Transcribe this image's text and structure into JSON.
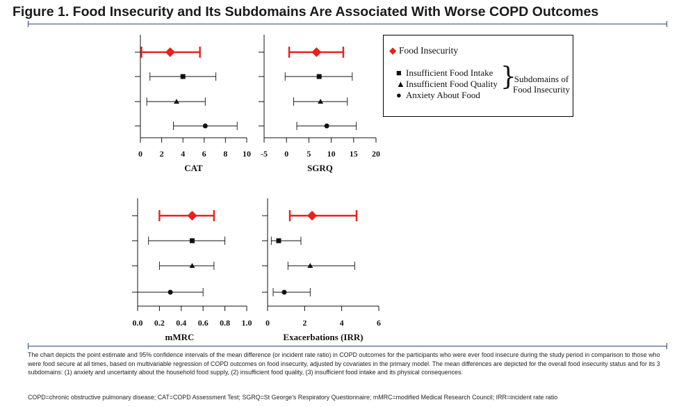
{
  "title": "Figure 1. Food Insecurity and Its Subdomains Are Associated With Worse COPD Outcomes",
  "legend": {
    "food_insecurity": "Food Insecurity",
    "subdomains": [
      "Insufficient Food Intake",
      "Insufficient Food Quality",
      "Anxiety About Food"
    ],
    "subdomain_group_line1": "Subdomains of",
    "subdomain_group_line2": "Food Insecurity",
    "colors": {
      "food_insecurity": "#e8211c",
      "subdomains": "#111111"
    },
    "markers": {
      "food_insecurity": "diamond",
      "subdomains": [
        "square",
        "triangle",
        "circle"
      ]
    }
  },
  "caption": "The chart depicts the point estimate and 95% confidence intervals of the mean difference (or incident rate ratio) in COPD outcomes for the participants who were ever food insecure during the study period in comparison to those who were food secure at all times, based on multivariable regression of COPD outcomes on food insecurity, adjusted by covariates in the primary model. The mean differences are depicted for the overall food insecurity status and for its 3 subdomains: (1) anxiety and uncertainty about the household food supply, (2) insufficient food quality, (3) insufficient food intake and its physical consequences.",
  "abbreviations": "COPD=chronic obstructive pulmonary disease; CAT=COPD Assessment Test; SGRQ=St George's Respiratory Questionnaire; mMRC=modified Medical Research Council; IRR=incident rate ratio",
  "chart_data": [
    {
      "type": "forest",
      "xlabel": "CAT",
      "xlim": [
        0,
        10
      ],
      "ticks": [
        "0",
        "2",
        "4",
        "6",
        "8",
        "10"
      ],
      "rows": [
        {
          "series": "Food Insecurity",
          "estimate": 2.8,
          "ci": [
            0.1,
            5.6
          ]
        },
        {
          "series": "Insufficient Food Intake",
          "estimate": 4.0,
          "ci": [
            0.9,
            7.1
          ]
        },
        {
          "series": "Insufficient Food Quality",
          "estimate": 3.4,
          "ci": [
            0.6,
            6.1
          ]
        },
        {
          "series": "Anxiety About Food",
          "estimate": 6.1,
          "ci": [
            3.1,
            9.1
          ]
        }
      ]
    },
    {
      "type": "forest",
      "xlabel": "SGRQ",
      "xlim": [
        -5,
        20
      ],
      "ticks": [
        "-5",
        "0",
        "5",
        "10",
        "15",
        "20"
      ],
      "rows": [
        {
          "series": "Food Insecurity",
          "estimate": 6.7,
          "ci": [
            0.6,
            12.7
          ]
        },
        {
          "series": "Insufficient Food Intake",
          "estimate": 7.3,
          "ci": [
            -0.3,
            14.7
          ]
        },
        {
          "series": "Insufficient Food Quality",
          "estimate": 7.6,
          "ci": [
            1.6,
            13.6
          ]
        },
        {
          "series": "Anxiety About Food",
          "estimate": 9.0,
          "ci": [
            2.3,
            15.6
          ]
        }
      ]
    },
    {
      "type": "forest",
      "xlabel": "mMRC",
      "xlim": [
        0,
        1.0
      ],
      "ticks": [
        "0.0",
        "0.2",
        "0.4",
        "0.6",
        "0.8",
        "1.0"
      ],
      "rows": [
        {
          "series": "Food Insecurity",
          "estimate": 0.5,
          "ci": [
            0.2,
            0.7
          ]
        },
        {
          "series": "Insufficient Food Intake",
          "estimate": 0.5,
          "ci": [
            0.1,
            0.8
          ]
        },
        {
          "series": "Insufficient Food Quality",
          "estimate": 0.5,
          "ci": [
            0.2,
            0.7
          ]
        },
        {
          "series": "Anxiety About Food",
          "estimate": 0.3,
          "ci": [
            0.0,
            0.6
          ]
        }
      ]
    },
    {
      "type": "forest",
      "xlabel": "Exacerbations (IRR)",
      "xlim": [
        0,
        6
      ],
      "ticks": [
        "0",
        "2",
        "4",
        "6"
      ],
      "rows": [
        {
          "series": "Food Insecurity",
          "estimate": 2.4,
          "ci": [
            1.2,
            4.8
          ]
        },
        {
          "series": "Insufficient Food Intake",
          "estimate": 0.6,
          "ci": [
            0.2,
            1.8
          ]
        },
        {
          "series": "Insufficient Food Quality",
          "estimate": 2.3,
          "ci": [
            1.1,
            4.7
          ]
        },
        {
          "series": "Anxiety About Food",
          "estimate": 0.9,
          "ci": [
            0.3,
            2.3
          ]
        }
      ]
    }
  ]
}
